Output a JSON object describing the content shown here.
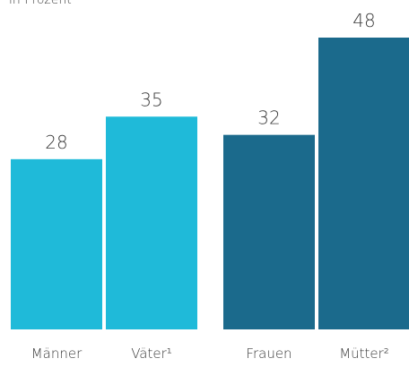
{
  "chart_data": {
    "type": "bar",
    "subtitle": "in Prozent",
    "categories": [
      "Männer",
      "Väter¹",
      "Frauen",
      "Mütter²"
    ],
    "values": [
      28,
      35,
      32,
      48
    ],
    "colors": [
      "#1fbad9",
      "#1fbad9",
      "#1b6a8c",
      "#1b6a8c"
    ]
  }
}
